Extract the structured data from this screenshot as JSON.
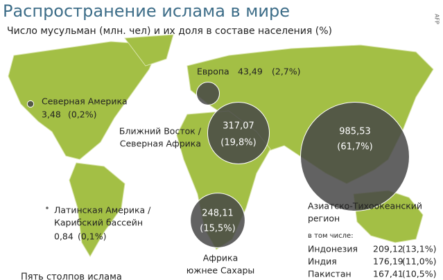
{
  "title": "Распространение ислама в мире",
  "subtitle": "Число мусульман (млн. чел) и их доля в составе населения (%)",
  "regions": [
    {
      "name_lines": [
        "Европа"
      ],
      "muslims": {
        "value": 43.49,
        "label": "43,49"
      },
      "share": {
        "value": 2.7,
        "label": "(2,7%)"
      }
    },
    {
      "name_lines": [
        "Северная Америка"
      ],
      "muslims": {
        "value": 3.48,
        "label": "3,48"
      },
      "share": {
        "value": 0.2,
        "label": "(0,2%)"
      }
    },
    {
      "name_lines": [
        "Ближний Восток /",
        "Северная Африка"
      ],
      "muslims": {
        "value": 317.07,
        "label": "317,07"
      },
      "share": {
        "value": 19.8,
        "label": "(19,8%)"
      }
    },
    {
      "name_lines": [
        "Африка",
        "южнее Сахары"
      ],
      "muslims": {
        "value": 248.11,
        "label": "248,11"
      },
      "share": {
        "value": 15.5,
        "label": "(15,5%)"
      }
    },
    {
      "name_lines": [
        "Азиатско-Тихоокеанский",
        "регион"
      ],
      "muslims": {
        "value": 985.53,
        "label": "985,53"
      },
      "share": {
        "value": 61.7,
        "label": "(61,7%)"
      }
    },
    {
      "name_lines": [
        "Латинская Америка /",
        "Карибский бассейн"
      ],
      "muslims": {
        "value": 0.84,
        "label": "0,84"
      },
      "share": {
        "value": 0.1,
        "label": "(0,1%)"
      }
    }
  ],
  "breakdown": {
    "heading": "в том числе:",
    "countries": [
      {
        "name": "Индонезия",
        "muslims": {
          "value": 209.12,
          "label": "209,12"
        },
        "share": {
          "value": 13.1,
          "label": "(13,1%)"
        }
      },
      {
        "name": "Индия",
        "muslims": {
          "value": 176.19,
          "label": "176,19"
        },
        "share": {
          "value": 11.0,
          "label": "(11,0%)"
        }
      },
      {
        "name": "Пакистан",
        "muslims": {
          "value": 167.41,
          "label": "167,41"
        },
        "share": {
          "value": 10.5,
          "label": "(10,5%)"
        }
      }
    ]
  },
  "footer": "Пять столпов ислама",
  "credit": "AFP"
}
